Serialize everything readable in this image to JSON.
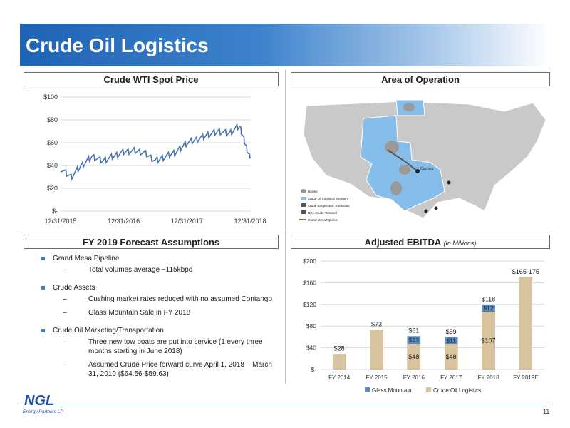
{
  "title": "Crude Oil Logistics",
  "sections": {
    "wti": "Crude WTI Spot Price",
    "area": "Area of Operation",
    "forecast": "FY 2019 Forecast Assumptions",
    "ebitda": "Adjusted EBITDA",
    "ebitda_note": "(In Millions)"
  },
  "bullets": [
    {
      "text": "Grand Mesa Pipeline",
      "subs": [
        "Total volumes average ~115kbpd"
      ]
    },
    {
      "text": "Crude Assets",
      "subs": [
        "Cushing market rates reduced with no assumed Contango",
        "Glass Mountain Sale in FY 2018"
      ]
    },
    {
      "text": "Crude Oil Marketing/Transportation",
      "subs": [
        "Three new tow boats are put into service  (1 every three months starting in June 2018)",
        "Assumed Crude Price forward curve April 1, 2018 – March 31, 2019 ($64.56-$59.63)"
      ]
    }
  ],
  "map_legend": {
    "basins": "Basins",
    "segment": "Crude Oil Logistics Segment",
    "barges": "Crude Barges and Tow Boats",
    "terminal": "NGL Crude Terminal",
    "pipeline": "Grand Mesa Pipeline",
    "cushing": "Cushing"
  },
  "logo_text": "NGL",
  "logo_sub": "Energy Partners LP",
  "page_number": "11",
  "chart_data": [
    {
      "type": "line",
      "title": "",
      "y_ticks": [
        "$-",
        "$20",
        "$40",
        "$60",
        "$80",
        "$100"
      ],
      "ylim": [
        0,
        100
      ],
      "x_ticks": [
        "12/31/2015",
        "12/31/2016",
        "12/31/2017",
        "12/31/2018"
      ],
      "series": [
        {
          "x": [
            "2015-12",
            "2016-02",
            "2016-04",
            "2016-06",
            "2016-08",
            "2016-10",
            "2016-12",
            "2017-02",
            "2017-04",
            "2017-06",
            "2017-08",
            "2017-10",
            "2017-12",
            "2018-02",
            "2018-04",
            "2018-06",
            "2018-08",
            "2018-10",
            "2018-11",
            "2018-12"
          ],
          "values": [
            37,
            30,
            40,
            48,
            44,
            48,
            52,
            53,
            51,
            44,
            48,
            52,
            60,
            63,
            67,
            70,
            68,
            75,
            60,
            46
          ]
        }
      ],
      "grid": true
    },
    {
      "type": "bar",
      "categories": [
        "FY 2014",
        "FY 2015",
        "FY 2016",
        "FY 2017",
        "FY 2018",
        "FY 2019E"
      ],
      "y_ticks": [
        "$-",
        "$40",
        "$80",
        "$120",
        "$160",
        "$200"
      ],
      "ylim": [
        0,
        200
      ],
      "series": [
        {
          "name": "Crude Oil Logistics",
          "values": [
            28,
            73,
            48,
            48,
            107,
            170
          ],
          "labels": [
            "$28",
            "$73",
            "$48",
            "$48",
            "$107",
            ""
          ],
          "color": "#d9c4a0"
        },
        {
          "name": "Glass Mountain",
          "values": [
            0,
            0,
            13,
            11,
            12,
            0
          ],
          "labels": [
            "",
            "",
            "$13",
            "$11",
            "$12",
            ""
          ],
          "color": "#5b8fcb"
        }
      ],
      "totals": [
        "",
        "",
        "$61",
        "$59",
        "$118",
        "$165-175"
      ],
      "legend": "bottom"
    }
  ]
}
